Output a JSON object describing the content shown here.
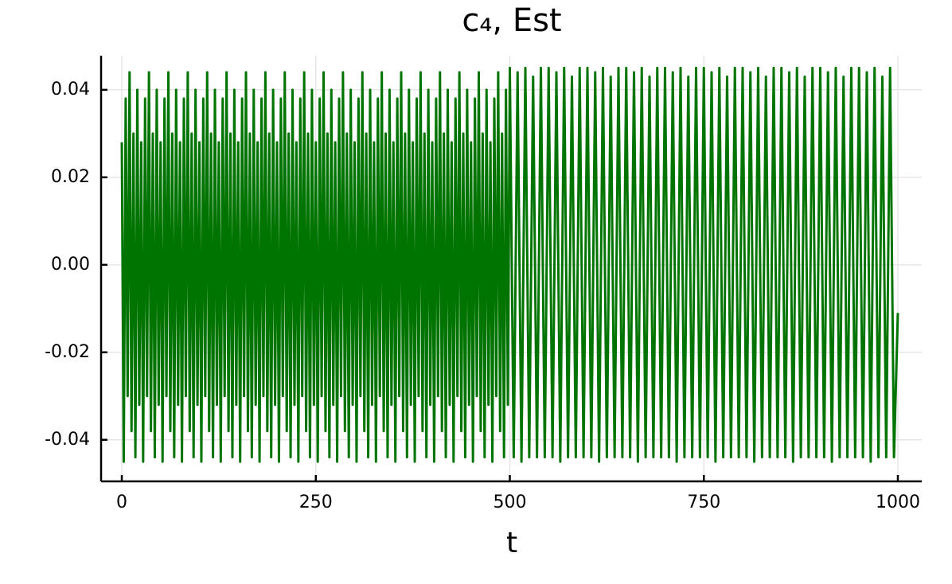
{
  "chart_data": {
    "type": "line",
    "title": "c₄, Est",
    "x_label": "t",
    "xlim": [
      -26.7,
      1030.8
    ],
    "ylim": [
      -0.0495,
      0.0478
    ],
    "xticks": [
      0,
      250,
      500,
      750,
      1000
    ],
    "yticks": [
      -0.04,
      -0.02,
      {
        "value": 0,
        "label": "0.00"
      },
      0.02,
      0.04
    ],
    "grid": true,
    "x": [
      0,
      2.5,
      5,
      7.5,
      10,
      12.5,
      15,
      17.5,
      20,
      22.5,
      25,
      27.5,
      30,
      32.5,
      35,
      37.5,
      40,
      42.5,
      45,
      47.5,
      50,
      52.5,
      55,
      57.5,
      60,
      62.5,
      65,
      67.5,
      70,
      72.5,
      75,
      77.5,
      80,
      82.5,
      85,
      87.5,
      90,
      92.5,
      95,
      97.5,
      100,
      102.5,
      105,
      107.5,
      110,
      112.5,
      115,
      117.5,
      120,
      122.5,
      125,
      127.5,
      130,
      132.5,
      135,
      137.5,
      140,
      142.5,
      145,
      147.5,
      150,
      152.5,
      155,
      157.5,
      160,
      162.5,
      165,
      167.5,
      170,
      172.5,
      175,
      177.5,
      180,
      182.5,
      185,
      187.5,
      190,
      192.5,
      195,
      197.5,
      200,
      202.5,
      205,
      207.5,
      210,
      212.5,
      215,
      217.5,
      220,
      222.5,
      225,
      227.5,
      230,
      232.5,
      235,
      237.5,
      240,
      242.5,
      245,
      247.5,
      250,
      252.5,
      255,
      257.5,
      260,
      262.5,
      265,
      267.5,
      270,
      272.5,
      275,
      277.5,
      280,
      282.5,
      285,
      287.5,
      290,
      292.5,
      295,
      297.5,
      300,
      302.5,
      305,
      307.5,
      310,
      312.5,
      315,
      317.5,
      320,
      322.5,
      325,
      327.5,
      330,
      332.5,
      335,
      337.5,
      340,
      342.5,
      345,
      347.5,
      350,
      352.5,
      355,
      357.5,
      360,
      362.5,
      365,
      367.5,
      370,
      372.5,
      375,
      377.5,
      380,
      382.5,
      385,
      387.5,
      390,
      392.5,
      395,
      397.5,
      400,
      402.5,
      405,
      407.5,
      410,
      412.5,
      415,
      417.5,
      420,
      422.5,
      425,
      427.5,
      430,
      432.5,
      435,
      437.5,
      440,
      442.5,
      445,
      447.5,
      450,
      452.5,
      455,
      457.5,
      460,
      462.5,
      465,
      467.5,
      470,
      472.5,
      475,
      477.5,
      480,
      482.5,
      485,
      487.5,
      490,
      492.5,
      495,
      497.5,
      500,
      505,
      510,
      515,
      520,
      525,
      530,
      535,
      540,
      545,
      550,
      555,
      560,
      565,
      570,
      575,
      580,
      585,
      590,
      595,
      600,
      605,
      610,
      615,
      620,
      625,
      630,
      635,
      640,
      645,
      650,
      655,
      660,
      665,
      670,
      675,
      680,
      685,
      690,
      695,
      700,
      705,
      710,
      715,
      720,
      725,
      730,
      735,
      740,
      745,
      750,
      755,
      760,
      765,
      770,
      775,
      780,
      785,
      790,
      795,
      800,
      805,
      810,
      815,
      820,
      825,
      830,
      835,
      840,
      845,
      850,
      855,
      860,
      865,
      870,
      875,
      880,
      885,
      890,
      895,
      900,
      905,
      910,
      915,
      920,
      925,
      930,
      935,
      940,
      945,
      950,
      955,
      960,
      965,
      970,
      975,
      980,
      985,
      990,
      995,
      1000
    ],
    "series": [
      {
        "color": "#007400",
        "values": [
          0.028,
          -0.045,
          0.038,
          -0.03,
          0.044,
          -0.038,
          0.03,
          -0.044,
          0.04,
          -0.032,
          0.028,
          -0.045,
          0.038,
          -0.03,
          0.044,
          -0.038,
          0.03,
          -0.044,
          0.04,
          -0.032,
          0.028,
          -0.045,
          0.038,
          -0.03,
          0.044,
          -0.038,
          0.03,
          -0.044,
          0.04,
          -0.032,
          0.028,
          -0.045,
          0.038,
          -0.03,
          0.044,
          -0.038,
          0.03,
          -0.044,
          0.04,
          -0.032,
          0.028,
          -0.045,
          0.038,
          -0.03,
          0.044,
          -0.038,
          0.03,
          -0.044,
          0.04,
          -0.032,
          0.028,
          -0.045,
          0.038,
          -0.03,
          0.044,
          -0.038,
          0.03,
          -0.044,
          0.04,
          -0.032,
          0.028,
          -0.045,
          0.038,
          -0.03,
          0.044,
          -0.038,
          0.03,
          -0.044,
          0.04,
          -0.032,
          0.028,
          -0.045,
          0.038,
          -0.03,
          0.044,
          -0.038,
          0.03,
          -0.044,
          0.04,
          -0.032,
          0.028,
          -0.045,
          0.038,
          -0.03,
          0.044,
          -0.038,
          0.03,
          -0.044,
          0.04,
          -0.032,
          0.028,
          -0.045,
          0.038,
          -0.03,
          0.044,
          -0.038,
          0.03,
          -0.044,
          0.04,
          -0.032,
          0.028,
          -0.045,
          0.038,
          -0.03,
          0.044,
          -0.038,
          0.03,
          -0.044,
          0.04,
          -0.032,
          0.028,
          -0.045,
          0.038,
          -0.03,
          0.044,
          -0.038,
          0.03,
          -0.044,
          0.04,
          -0.032,
          0.028,
          -0.045,
          0.038,
          -0.03,
          0.044,
          -0.038,
          0.03,
          -0.044,
          0.04,
          -0.032,
          0.028,
          -0.045,
          0.038,
          -0.03,
          0.044,
          -0.038,
          0.03,
          -0.044,
          0.04,
          -0.032,
          0.028,
          -0.045,
          0.038,
          -0.03,
          0.044,
          -0.038,
          0.03,
          -0.044,
          0.04,
          -0.032,
          0.028,
          -0.045,
          0.038,
          -0.03,
          0.044,
          -0.038,
          0.03,
          -0.044,
          0.04,
          -0.032,
          0.028,
          -0.045,
          0.038,
          -0.03,
          0.044,
          -0.038,
          0.03,
          -0.044,
          0.04,
          -0.032,
          0.028,
          -0.045,
          0.038,
          -0.03,
          0.044,
          -0.038,
          0.03,
          -0.044,
          0.04,
          -0.032,
          0.028,
          -0.045,
          0.038,
          -0.03,
          0.044,
          -0.038,
          0.03,
          -0.044,
          0.04,
          -0.032,
          0.028,
          -0.045,
          0.038,
          -0.03,
          0.044,
          -0.038,
          0.03,
          -0.044,
          0.04,
          -0.032,
          0.045,
          -0.044,
          0.044,
          -0.045,
          0.045,
          -0.044,
          0.043,
          -0.044,
          0.045,
          -0.044,
          0.045,
          -0.044,
          0.044,
          -0.045,
          0.045,
          -0.044,
          0.043,
          -0.044,
          0.045,
          -0.044,
          0.045,
          -0.044,
          0.044,
          -0.045,
          0.045,
          -0.044,
          0.043,
          -0.044,
          0.045,
          -0.044,
          0.045,
          -0.044,
          0.044,
          -0.045,
          0.045,
          -0.044,
          0.043,
          -0.044,
          0.045,
          -0.044,
          0.045,
          -0.044,
          0.044,
          -0.045,
          0.045,
          -0.044,
          0.043,
          -0.044,
          0.045,
          -0.044,
          0.045,
          -0.044,
          0.044,
          -0.045,
          0.045,
          -0.044,
          0.043,
          -0.044,
          0.045,
          -0.044,
          0.045,
          -0.044,
          0.044,
          -0.045,
          0.045,
          -0.044,
          0.043,
          -0.044,
          0.045,
          -0.044,
          0.045,
          -0.044,
          0.044,
          -0.045,
          0.045,
          -0.044,
          0.043,
          -0.044,
          0.045,
          -0.044,
          0.045,
          -0.044,
          0.044,
          -0.045,
          0.045,
          -0.044,
          0.043,
          -0.044,
          0.045,
          -0.044,
          0.045,
          -0.044,
          0.044,
          -0.045,
          0.045,
          -0.044,
          0.043,
          -0.044,
          0.045,
          -0.044,
          -0.011
        ]
      }
    ]
  }
}
